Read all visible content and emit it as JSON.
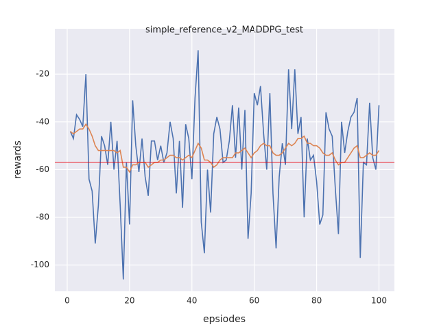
{
  "chart_data": {
    "type": "line",
    "title": "simple_reference_v2_MADDPG_test",
    "x_label": "epsiodes",
    "y_label": "rewards",
    "x": [
      1,
      2,
      3,
      4,
      5,
      6,
      7,
      8,
      9,
      10,
      11,
      12,
      13,
      14,
      15,
      16,
      17,
      18,
      19,
      20,
      21,
      22,
      23,
      24,
      25,
      26,
      27,
      28,
      29,
      30,
      31,
      32,
      33,
      34,
      35,
      36,
      37,
      38,
      39,
      40,
      41,
      42,
      43,
      44,
      45,
      46,
      47,
      48,
      49,
      50,
      51,
      52,
      53,
      54,
      55,
      56,
      57,
      58,
      59,
      60,
      61,
      62,
      63,
      64,
      65,
      66,
      67,
      68,
      69,
      70,
      71,
      72,
      73,
      74,
      75,
      76,
      77,
      78,
      79,
      80,
      81,
      82,
      83,
      84,
      85,
      86,
      87,
      88,
      89,
      90,
      91,
      92,
      93,
      94,
      95,
      96,
      97,
      98,
      99,
      100
    ],
    "series": [
      {
        "color": "#4c72b0",
        "values": [
          -44,
          -47,
          -37,
          -39,
          -42,
          -20,
          -64,
          -69,
          -91,
          -75,
          -46,
          -50,
          -58,
          -40,
          -60,
          -48,
          -75,
          -106,
          -57,
          -83,
          -31,
          -50,
          -61,
          -47,
          -63,
          -71,
          -48,
          -48,
          -56,
          -50,
          -57,
          -53,
          -40,
          -47,
          -70,
          -48,
          -76,
          -41,
          -47,
          -64,
          -30,
          -10,
          -82,
          -95,
          -60,
          -78,
          -45,
          -38,
          -43,
          -57,
          -56,
          -48,
          -33,
          -55,
          -34,
          -60,
          -35,
          -89,
          -70,
          -28,
          -33,
          -25,
          -45,
          -60,
          -28,
          -70,
          -93,
          -63,
          -49,
          -58,
          -18,
          -43,
          -18,
          -45,
          -38,
          -80,
          -47,
          -56,
          -54,
          -65,
          -83,
          -79,
          -36,
          -43,
          -46,
          -68,
          -87,
          -40,
          -53,
          -44,
          -38,
          -36,
          -30,
          -97,
          -57,
          -58,
          -32,
          -55,
          -60,
          -33
        ]
      },
      {
        "color": "#dd8452",
        "values": [
          -44,
          -45,
          -44,
          -43,
          -43,
          -41,
          -43,
          -46,
          -50,
          -52,
          -52,
          -52,
          -52,
          -52,
          -52,
          -53,
          -52,
          -59,
          -59,
          -61,
          -58,
          -58,
          -57,
          -57,
          -57,
          -59,
          -58,
          -57,
          -57,
          -56,
          -56,
          -55,
          -54,
          -54,
          -55,
          -55,
          -56,
          -55,
          -54,
          -55,
          -52,
          -49,
          -51,
          -56,
          -56,
          -57,
          -59,
          -58,
          -56,
          -55,
          -55,
          -55,
          -55,
          -53,
          -53,
          -52,
          -51,
          -53,
          -55,
          -53,
          -52,
          -50,
          -49,
          -50,
          -50,
          -53,
          -54,
          -54,
          -53,
          -51,
          -49,
          -50,
          -49,
          -47,
          -47,
          -46,
          -49,
          -49,
          -50,
          -50,
          -51,
          -53,
          -54,
          -54,
          -53,
          -56,
          -58,
          -57,
          -57,
          -55,
          -53,
          -51,
          -50,
          -55,
          -55,
          -54,
          -53,
          -54,
          -54,
          -52
        ]
      }
    ],
    "hline": {
      "value": -57,
      "color": "#e8000b"
    },
    "xlim": [
      -3.95,
      104.95
    ],
    "xticks": [
      0,
      20,
      40,
      60,
      80,
      100
    ],
    "ylim": [
      -111,
      -1
    ],
    "yticks": [
      -100,
      -80,
      -60,
      -40,
      -20
    ],
    "grid": true
  }
}
